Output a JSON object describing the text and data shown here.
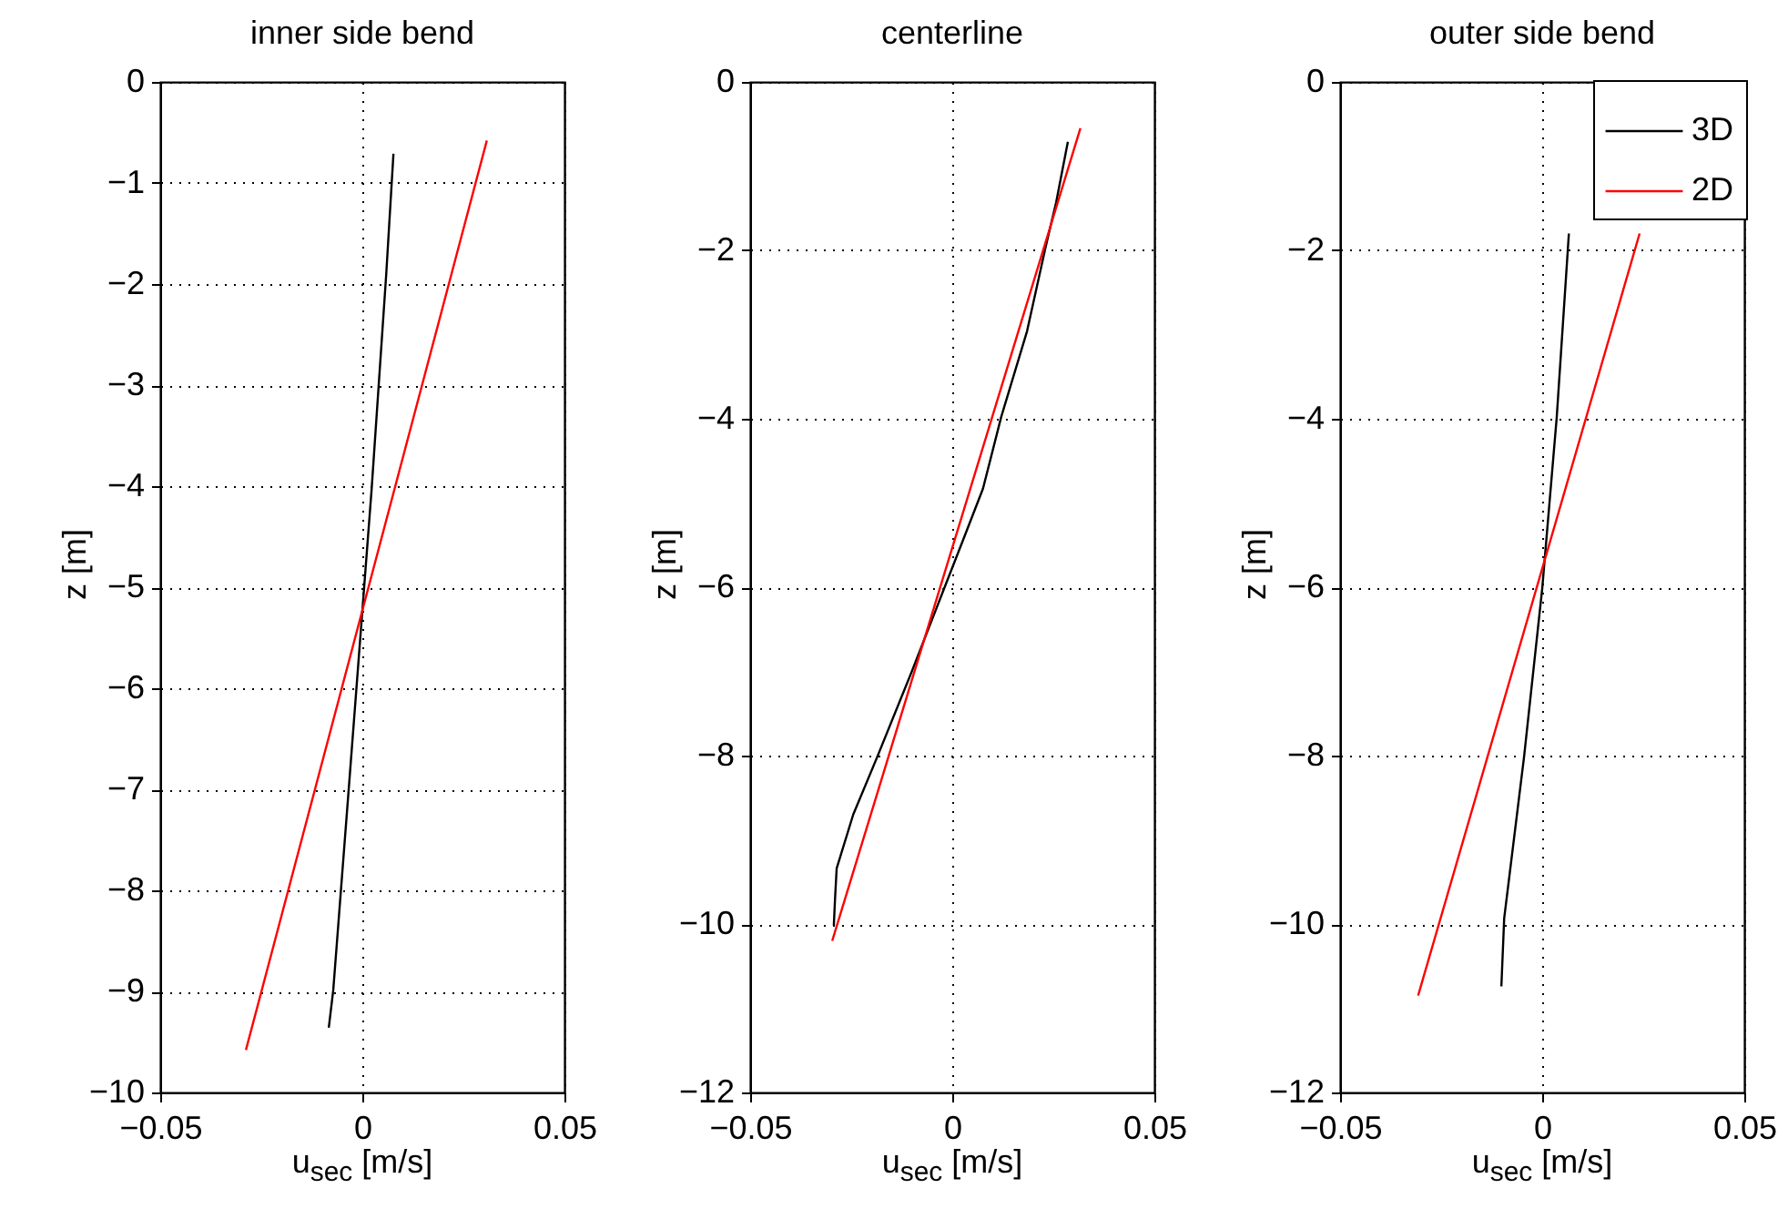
{
  "chart_data": [
    {
      "type": "line",
      "title": "inner side bend",
      "xlabel": "u$_{sec}$ [m/s]",
      "ylabel": "z [m]",
      "xlim": [
        -0.05,
        0.05
      ],
      "xticks": [
        -0.05,
        0,
        0.05
      ],
      "ylim": [
        -10,
        0
      ],
      "yticks": [
        -10,
        -9,
        -8,
        -7,
        -6,
        -5,
        -4,
        -3,
        -2,
        -1,
        0
      ],
      "grid": true,
      "legend": false,
      "series": [
        {
          "color": "#000000",
          "x": [
            -0.0083,
            -0.0072,
            -0.0031,
            0.0023,
            0.0059,
            0.0077
          ],
          "values": [
            -9.36,
            -8.99,
            -6.86,
            -4.03,
            -1.91,
            -0.71
          ]
        },
        {
          "color": "#ff0000",
          "x": [
            -0.0288,
            0.0308
          ],
          "values": [
            -9.58,
            -0.58
          ]
        }
      ]
    },
    {
      "type": "line",
      "title": "centerline",
      "xlabel": "u$_{sec}$ [m/s]",
      "ylabel": "z [m]",
      "xlim": [
        -0.05,
        0.05
      ],
      "xticks": [
        -0.05,
        0,
        0.05
      ],
      "ylim": [
        -12,
        0
      ],
      "yticks": [
        -12,
        -10,
        -8,
        -6,
        -4,
        -2,
        0
      ],
      "grid": true,
      "legend": false,
      "series": [
        {
          "color": "#000000",
          "x": [
            -0.0293,
            -0.029,
            -0.0286,
            -0.0245,
            -0.0186,
            -0.01,
            -0.0014,
            0.003,
            0.0076,
            0.0121,
            0.0185,
            0.023,
            0.0257,
            0.0286
          ],
          "values": [
            -10.02,
            -9.7,
            -9.34,
            -8.7,
            -8.02,
            -7.0,
            -5.94,
            -5.4,
            -4.83,
            -3.98,
            -2.96,
            -1.98,
            -1.43,
            -0.71
          ]
        },
        {
          "color": "#ff0000",
          "x": [
            -0.0297,
            0.0317
          ],
          "values": [
            -10.2,
            -0.55
          ]
        }
      ]
    },
    {
      "type": "line",
      "title": "outer side bend",
      "xlabel": "u$_{sec}$ [m/s]",
      "ylabel": "z [m]",
      "xlim": [
        -0.05,
        0.05
      ],
      "xticks": [
        -0.05,
        0,
        0.05
      ],
      "ylim": [
        -12,
        0
      ],
      "yticks": [
        -12,
        -10,
        -8,
        -6,
        -4,
        -2,
        0
      ],
      "grid": true,
      "legend": "top right",
      "series": [
        {
          "name": "3D",
          "color": "#000000",
          "x": [
            -0.0101,
            -0.0094,
            -0.0045,
            0,
            0.0036,
            0.0063,
            0.0066
          ],
          "values": [
            -10.74,
            -9.93,
            -8.02,
            -6.02,
            -3.98,
            -2.02,
            -1.8
          ]
        },
        {
          "name": "2D",
          "color": "#ff0000",
          "x": [
            -0.0307,
            0.0241
          ],
          "values": [
            -10.85,
            -1.8
          ]
        }
      ]
    }
  ]
}
